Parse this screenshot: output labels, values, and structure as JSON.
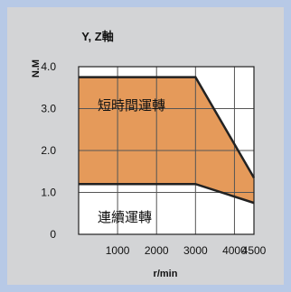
{
  "chart_data": {
    "type": "area",
    "title": "Y, Z軸",
    "xlabel": "r/min",
    "ylabel": "N.M",
    "xlim": [
      0,
      4500
    ],
    "ylim": [
      0,
      4.0
    ],
    "x_ticks": [
      "1000",
      "2000",
      "3000",
      "4000",
      "4500"
    ],
    "y_ticks": [
      "0",
      "1.0",
      "2.0",
      "3.0",
      "4.0"
    ],
    "grid": true,
    "series": [
      {
        "name": "短時間運轉",
        "x": [
          0,
          3000,
          4500
        ],
        "y": [
          3.75,
          3.75,
          1.35
        ],
        "color": "#e59a5a"
      },
      {
        "name": "連續運轉",
        "x": [
          0,
          3000,
          4500
        ],
        "y": [
          1.2,
          1.2,
          0.75
        ],
        "color": "#ffffff"
      }
    ],
    "annotations": [
      "短時間運轉",
      "連續運轉"
    ]
  }
}
